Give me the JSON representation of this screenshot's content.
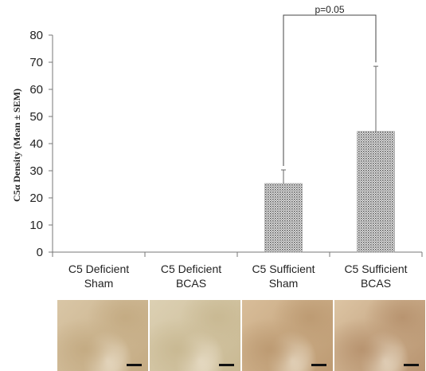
{
  "chart_data": {
    "type": "bar",
    "ylabel": "C5α Density (Mean ± SEM)",
    "ylim": [
      0,
      80
    ],
    "yticks": [
      0,
      10,
      20,
      30,
      40,
      50,
      60,
      70,
      80
    ],
    "categories": [
      [
        "C5 Deficient",
        "Sham"
      ],
      [
        "C5 Deficient",
        "BCAS"
      ],
      [
        "C5 Sufficient",
        "Sham"
      ],
      [
        "C5 Sufficient",
        "BCAS"
      ]
    ],
    "values": [
      0,
      0,
      25.3,
      44.5
    ],
    "error_upper": [
      0,
      0,
      5,
      24
    ],
    "annotations": [
      {
        "text": "p=0.05",
        "between": [
          2,
          3
        ]
      }
    ],
    "grid": false,
    "legend": "none"
  },
  "micrographs": [
    {
      "name": "C5 Deficient Sham",
      "base": "#d9c6a6",
      "spot": "#c4ab83"
    },
    {
      "name": "C5 Deficient BCAS",
      "base": "#dcd0b3",
      "spot": "#c9b993"
    },
    {
      "name": "C5 Sufficient Sham",
      "base": "#d8bd99",
      "spot": "#bd9b73"
    },
    {
      "name": "C5 Sufficient BCAS",
      "base": "#dcc4a3",
      "spot": "#b89470"
    }
  ]
}
